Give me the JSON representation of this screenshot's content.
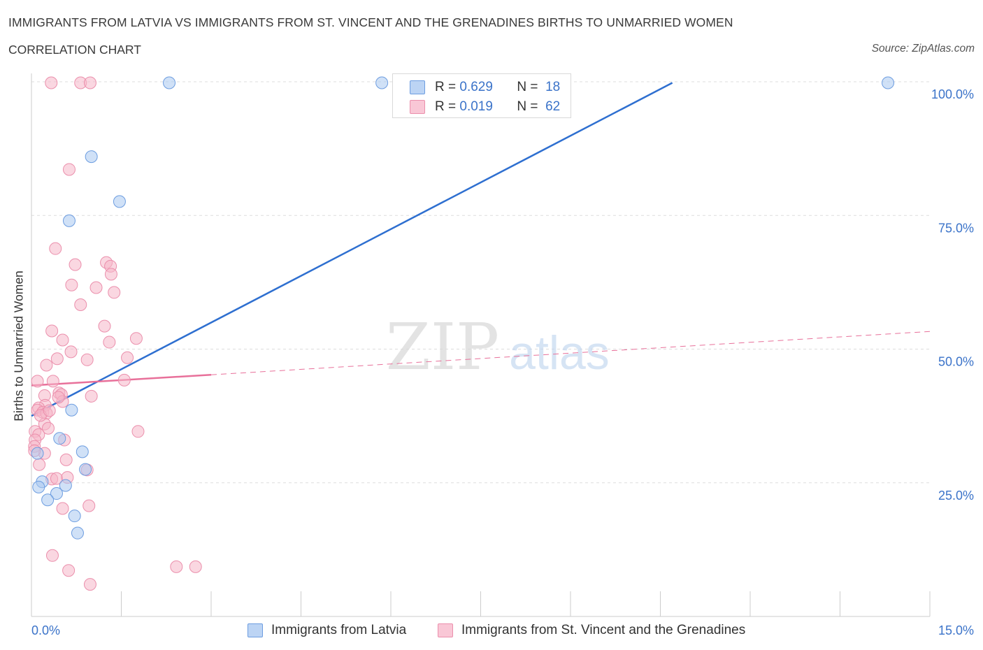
{
  "header": {
    "title": "IMMIGRANTS FROM LATVIA VS IMMIGRANTS FROM ST. VINCENT AND THE GRENADINES BIRTHS TO UNMARRIED WOMEN",
    "subtitle": "CORRELATION CHART",
    "source": "Source: ZipAtlas.com"
  },
  "legend": {
    "latvia": {
      "r_label": "R =",
      "r_value": "0.629",
      "n_label": "N =",
      "n_value": "18",
      "name": "Immigrants from Latvia"
    },
    "stvincent": {
      "r_label": "R =",
      "r_value": "0.019",
      "n_label": "N =",
      "n_value": "62",
      "name": "Immigrants from St. Vincent and the Grenadines"
    }
  },
  "watermark": {
    "zip": "ZIP",
    "atlas": "atlas"
  },
  "colors": {
    "latvia_fill": "#a9c8f0",
    "latvia_stroke": "#6d9de0",
    "latvia_line": "#2e6fd0",
    "stvincent_fill": "#f6b6c9",
    "stvincent_stroke": "#eb8fac",
    "stvincent_line": "#e8709a",
    "axis_text": "#3b73c9",
    "grid": "#dddddd"
  },
  "chart_data": {
    "type": "scatter",
    "title": "IMMIGRANTS FROM LATVIA VS IMMIGRANTS FROM ST. VINCENT AND THE GRENADINES BIRTHS TO UNMARRIED WOMEN",
    "xlabel": "",
    "ylabel": "Births to Unmarried Women",
    "xlim": [
      0,
      15
    ],
    "ylim": [
      0,
      100
    ],
    "x_tick_labels": [
      "0.0%",
      "15.0%"
    ],
    "y_tick_labels": [
      "100.0%",
      "75.0%",
      "50.0%",
      "25.0%"
    ],
    "y_ticks": [
      100,
      75,
      50,
      25
    ],
    "series": [
      {
        "name": "Immigrants from Latvia",
        "points": [
          [
            2.3,
            99.8
          ],
          [
            5.85,
            99.8
          ],
          [
            14.3,
            99.8
          ],
          [
            1.0,
            86.0
          ],
          [
            1.47,
            77.6
          ],
          [
            0.63,
            74.0
          ],
          [
            0.67,
            38.6
          ],
          [
            0.47,
            33.3
          ],
          [
            0.85,
            30.8
          ],
          [
            0.1,
            30.5
          ],
          [
            0.9,
            27.5
          ],
          [
            0.18,
            25.2
          ],
          [
            0.57,
            24.5
          ],
          [
            0.12,
            24.2
          ],
          [
            0.42,
            23.0
          ],
          [
            0.27,
            21.8
          ],
          [
            0.72,
            18.8
          ],
          [
            0.77,
            15.6
          ]
        ],
        "trend": {
          "x": [
            0.0,
            10.7
          ],
          "y": [
            37.5,
            99.8
          ]
        }
      },
      {
        "name": "Immigrants from St. Vincent and the Grenadines",
        "points": [
          [
            0.33,
            99.8
          ],
          [
            0.82,
            99.8
          ],
          [
            0.98,
            99.8
          ],
          [
            0.63,
            83.6
          ],
          [
            0.4,
            68.8
          ],
          [
            0.73,
            65.8
          ],
          [
            1.25,
            66.2
          ],
          [
            1.32,
            65.5
          ],
          [
            1.33,
            64.0
          ],
          [
            0.67,
            62.0
          ],
          [
            1.08,
            61.5
          ],
          [
            1.38,
            60.6
          ],
          [
            0.82,
            58.3
          ],
          [
            1.22,
            54.3
          ],
          [
            0.34,
            53.4
          ],
          [
            1.75,
            52.0
          ],
          [
            0.52,
            51.7
          ],
          [
            1.3,
            51.3
          ],
          [
            0.66,
            49.5
          ],
          [
            0.43,
            48.2
          ],
          [
            0.93,
            48.0
          ],
          [
            1.6,
            48.4
          ],
          [
            0.25,
            47.0
          ],
          [
            1.55,
            44.2
          ],
          [
            0.1,
            44.0
          ],
          [
            0.36,
            44.0
          ],
          [
            0.22,
            41.3
          ],
          [
            0.46,
            41.8
          ],
          [
            0.5,
            41.5
          ],
          [
            1.0,
            41.2
          ],
          [
            0.52,
            40.2
          ],
          [
            0.23,
            39.5
          ],
          [
            0.12,
            39.0
          ],
          [
            0.1,
            38.6
          ],
          [
            0.19,
            38.2
          ],
          [
            0.25,
            38.0
          ],
          [
            0.22,
            36.0
          ],
          [
            0.28,
            35.2
          ],
          [
            0.06,
            34.6
          ],
          [
            0.12,
            34.0
          ],
          [
            1.78,
            34.6
          ],
          [
            0.06,
            33.0
          ],
          [
            0.55,
            33.0
          ],
          [
            0.05,
            31.8
          ],
          [
            0.22,
            30.5
          ],
          [
            0.58,
            29.3
          ],
          [
            0.13,
            28.4
          ],
          [
            0.93,
            27.4
          ],
          [
            0.34,
            25.7
          ],
          [
            0.42,
            25.8
          ],
          [
            0.6,
            26.0
          ],
          [
            0.52,
            20.2
          ],
          [
            0.96,
            20.7
          ],
          [
            0.35,
            11.4
          ],
          [
            0.62,
            8.6
          ],
          [
            2.42,
            9.3
          ],
          [
            2.74,
            9.3
          ],
          [
            0.98,
            6.0
          ],
          [
            0.05,
            31.0
          ],
          [
            0.15,
            37.6
          ],
          [
            0.3,
            38.5
          ],
          [
            0.45,
            41.0
          ]
        ],
        "trend": {
          "x": [
            0.0,
            3.0
          ],
          "y": [
            43.2,
            45.2
          ]
        },
        "trend_extension": {
          "x": [
            3.0,
            15.0
          ],
          "y": [
            45.2,
            53.3
          ]
        }
      }
    ]
  }
}
